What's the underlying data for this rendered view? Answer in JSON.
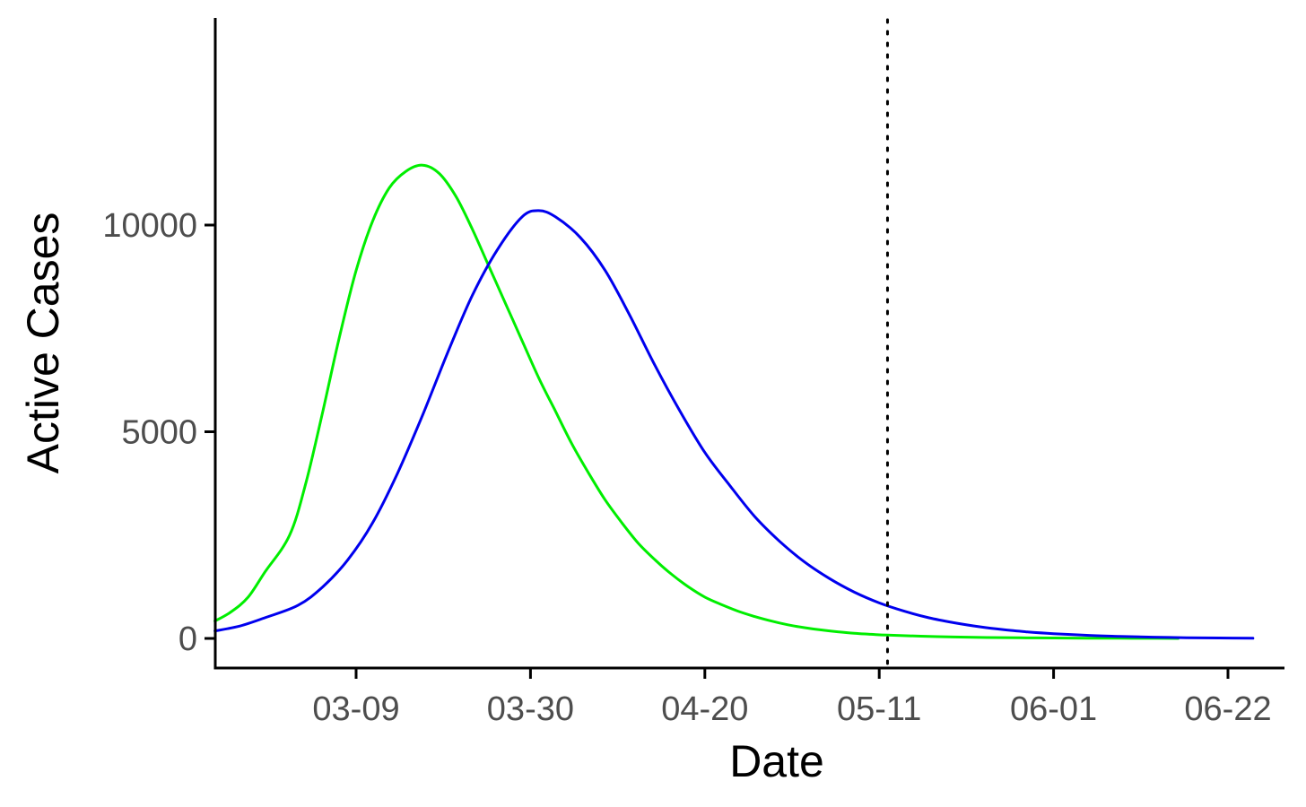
{
  "chart_data": {
    "type": "line",
    "xlabel": "Date",
    "ylabel": "Active Cases",
    "x_tick_labels": [
      "03-09",
      "03-30",
      "04-20",
      "05-11",
      "06-01",
      "06-22"
    ],
    "y_tick_labels": [
      "0",
      "5000",
      "10000"
    ],
    "y_ticks": [
      0,
      5000,
      10000
    ],
    "ylim": [
      -700,
      15000
    ],
    "grid": false,
    "legend": "none",
    "vertical_reference_line": {
      "date": "05-12",
      "style": "dotted",
      "color": "#000000"
    },
    "series": [
      {
        "color": "#00ee00",
        "points": [
          [
            "02-21",
            420
          ],
          [
            "02-23",
            650
          ],
          [
            "02-25",
            1000
          ],
          [
            "02-27",
            1600
          ],
          [
            "03-01",
            2500
          ],
          [
            "03-03",
            3800
          ],
          [
            "03-05",
            5500
          ],
          [
            "03-07",
            7300
          ],
          [
            "03-09",
            8900
          ],
          [
            "03-11",
            10100
          ],
          [
            "03-13",
            10900
          ],
          [
            "03-15",
            11300
          ],
          [
            "03-17",
            11450
          ],
          [
            "03-19",
            11250
          ],
          [
            "03-21",
            10700
          ],
          [
            "03-23",
            9900
          ],
          [
            "03-25",
            9000
          ],
          [
            "03-27",
            8100
          ],
          [
            "03-29",
            7200
          ],
          [
            "03-31",
            6300
          ],
          [
            "04-02",
            5500
          ],
          [
            "04-04",
            4700
          ],
          [
            "04-06",
            4000
          ],
          [
            "04-08",
            3350
          ],
          [
            "04-10",
            2800
          ],
          [
            "04-12",
            2300
          ],
          [
            "04-14",
            1900
          ],
          [
            "04-16",
            1550
          ],
          [
            "04-18",
            1250
          ],
          [
            "04-20",
            1000
          ],
          [
            "04-22",
            820
          ],
          [
            "04-24",
            660
          ],
          [
            "04-26",
            530
          ],
          [
            "04-28",
            420
          ],
          [
            "04-30",
            330
          ],
          [
            "05-02",
            260
          ],
          [
            "05-04",
            205
          ],
          [
            "05-06",
            160
          ],
          [
            "05-08",
            125
          ],
          [
            "05-10",
            100
          ],
          [
            "05-12",
            80
          ],
          [
            "05-16",
            55
          ],
          [
            "05-20",
            35
          ],
          [
            "05-24",
            22
          ],
          [
            "05-28",
            15
          ],
          [
            "06-01",
            10
          ],
          [
            "06-05",
            6
          ],
          [
            "06-09",
            4
          ],
          [
            "06-13",
            2
          ],
          [
            "06-16",
            1
          ]
        ]
      },
      {
        "color": "#0000ee",
        "points": [
          [
            "02-21",
            180
          ],
          [
            "02-24",
            300
          ],
          [
            "02-27",
            500
          ],
          [
            "03-02",
            800
          ],
          [
            "03-05",
            1250
          ],
          [
            "03-08",
            1900
          ],
          [
            "03-11",
            2800
          ],
          [
            "03-14",
            4000
          ],
          [
            "03-17",
            5400
          ],
          [
            "03-20",
            6900
          ],
          [
            "03-23",
            8300
          ],
          [
            "03-26",
            9400
          ],
          [
            "03-29",
            10200
          ],
          [
            "03-31",
            10350
          ],
          [
            "04-02",
            10200
          ],
          [
            "04-05",
            9700
          ],
          [
            "04-08",
            8900
          ],
          [
            "04-11",
            7800
          ],
          [
            "04-14",
            6600
          ],
          [
            "04-17",
            5500
          ],
          [
            "04-20",
            4500
          ],
          [
            "04-23",
            3700
          ],
          [
            "04-26",
            2950
          ],
          [
            "04-29",
            2350
          ],
          [
            "05-02",
            1850
          ],
          [
            "05-05",
            1450
          ],
          [
            "05-08",
            1120
          ],
          [
            "05-11",
            860
          ],
          [
            "05-14",
            660
          ],
          [
            "05-17",
            500
          ],
          [
            "05-20",
            380
          ],
          [
            "05-23",
            285
          ],
          [
            "05-26",
            210
          ],
          [
            "05-29",
            155
          ],
          [
            "06-01",
            115
          ],
          [
            "06-05",
            75
          ],
          [
            "06-09",
            48
          ],
          [
            "06-13",
            30
          ],
          [
            "06-17",
            18
          ],
          [
            "06-21",
            10
          ],
          [
            "06-25",
            5
          ]
        ]
      }
    ]
  }
}
